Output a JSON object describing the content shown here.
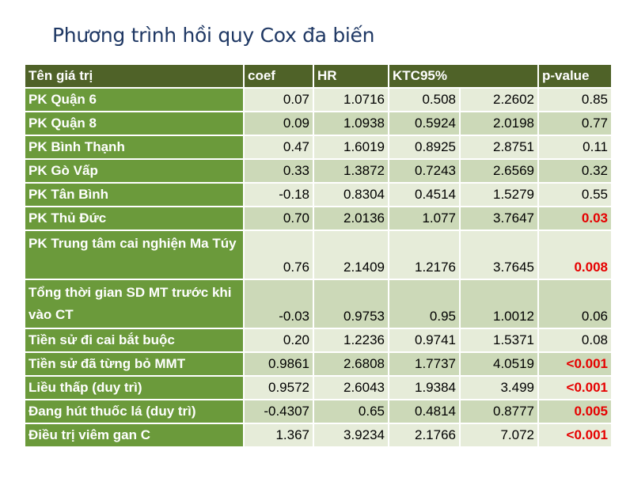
{
  "title": "Phương trình hồi quy Cox đa biến",
  "headers": [
    "Tên giá trị",
    "coef",
    "HR",
    "KTC95%",
    "p-value"
  ],
  "rows": [
    {
      "label": "PK Quận 6",
      "coef": "0.07",
      "hr": "1.0716",
      "ci_low": "0.508",
      "ci_high": "2.2602",
      "p": "0.85",
      "significant": false
    },
    {
      "label": "PK Quận 8",
      "coef": "0.09",
      "hr": "1.0938",
      "ci_low": "0.5924",
      "ci_high": "2.0198",
      "p": "0.77",
      "significant": false
    },
    {
      "label": "PK Bình Thạnh",
      "coef": "0.47",
      "hr": "1.6019",
      "ci_low": "0.8925",
      "ci_high": "2.8751",
      "p": "0.11",
      "significant": false
    },
    {
      "label": "PK Gò Vấp",
      "coef": "0.33",
      "hr": "1.3872",
      "ci_low": "0.7243",
      "ci_high": "2.6569",
      "p": "0.32",
      "significant": false
    },
    {
      "label": "PK Tân Bình",
      "coef": "-0.18",
      "hr": "0.8304",
      "ci_low": "0.4514",
      "ci_high": "1.5279",
      "p": "0.55",
      "significant": false
    },
    {
      "label": "PK Thủ Đức",
      "coef": "0.70",
      "hr": "2.0136",
      "ci_low": "1.077",
      "ci_high": "3.7647",
      "p": "0.03",
      "significant": true
    },
    {
      "label": "PK Trung tâm cai nghiện Ma Túy",
      "coef": "0.76",
      "hr": "2.1409",
      "ci_low": "1.2176",
      "ci_high": "3.7645",
      "p": "0.008",
      "significant": true,
      "tall": true
    },
    {
      "label": "Tổng thời gian SD MT trước khi vào CT",
      "coef": "-0.03",
      "hr": "0.9753",
      "ci_low": "0.95",
      "ci_high": "1.0012",
      "p": "0.06",
      "significant": false,
      "tall": true
    },
    {
      "label": "Tiền sử đi cai bắt buộc",
      "coef": "0.20",
      "hr": "1.2236",
      "ci_low": "0.9741",
      "ci_high": "1.5371",
      "p": "0.08",
      "significant": false
    },
    {
      "label": "Tiền sử đã từng bỏ MMT",
      "coef": "0.9861",
      "hr": "2.6808",
      "ci_low": "1.7737",
      "ci_high": "4.0519",
      "p": "<0.001",
      "significant": true
    },
    {
      "label": "Liều thấp (duy trì)",
      "coef": "0.9572",
      "hr": "2.6043",
      "ci_low": "1.9384",
      "ci_high": "3.499",
      "p": "<0.001",
      "significant": true
    },
    {
      "label": "Đang hút thuốc lá (duy trì)",
      "coef": "-0.4307",
      "hr": "0.65",
      "ci_low": "0.4814",
      "ci_high": "0.8777",
      "p": "0.005",
      "significant": true
    },
    {
      "label": "Điều trị viêm gan C",
      "coef": "1.367",
      "hr": "3.9234",
      "ci_low": "2.1766",
      "ci_high": "7.072",
      "p": "<0.001",
      "significant": true
    }
  ]
}
